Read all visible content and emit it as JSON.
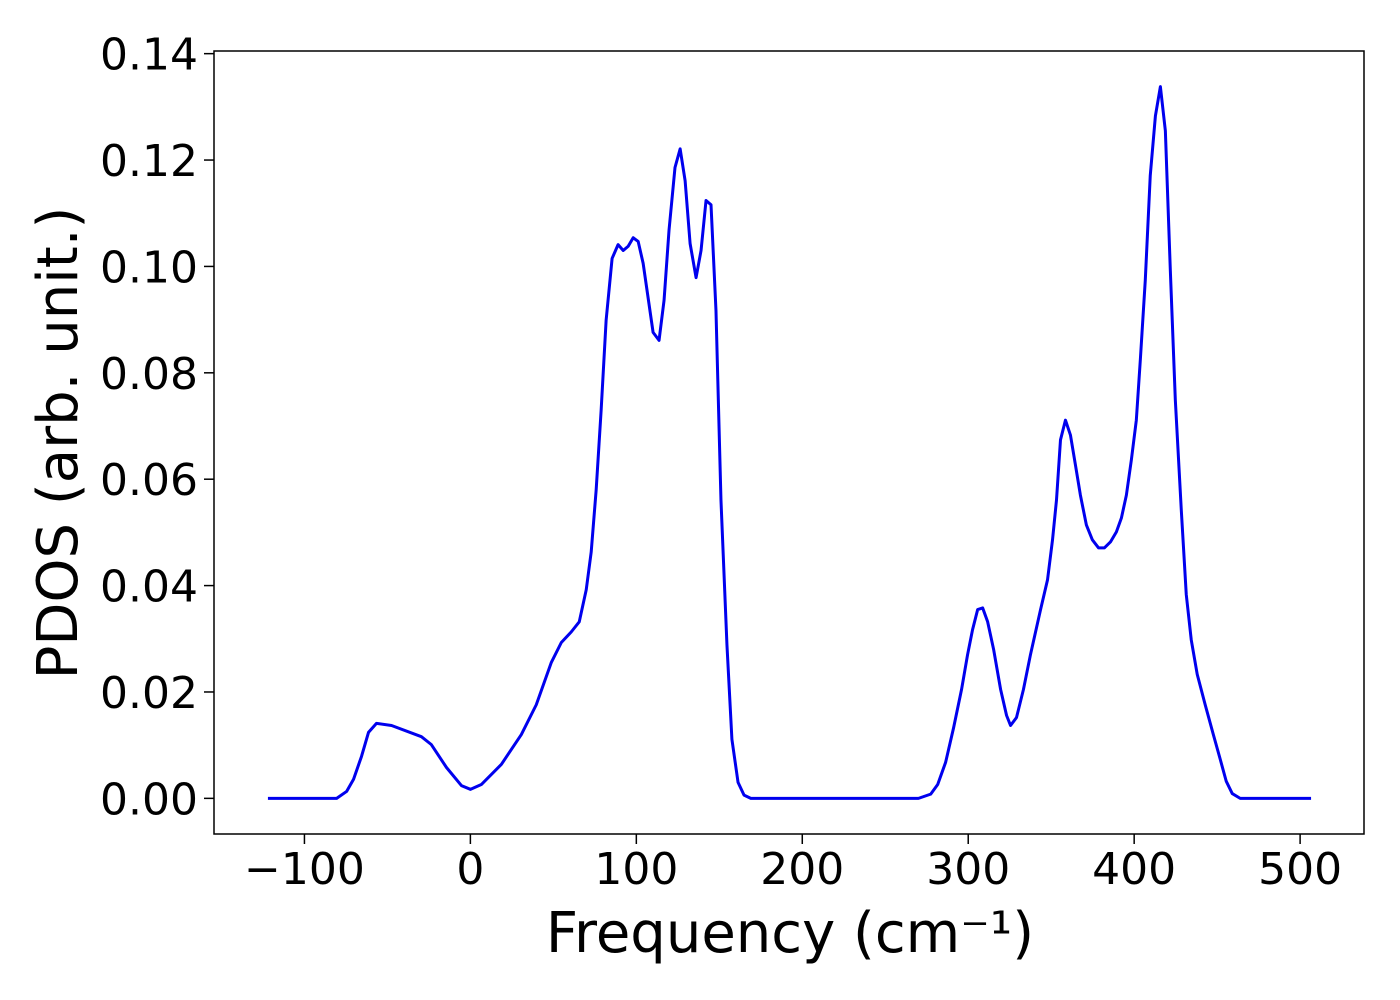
{
  "chart_data": {
    "type": "line",
    "xlabel": "Frequency (cm⁻¹)",
    "ylabel": "PDOS (arb. unit.)",
    "x": [
      -122,
      -80.6,
      -74.6,
      -70.4,
      -65.6,
      -61.4,
      -56.6,
      -47.5,
      -29.5,
      -23.5,
      -14.4,
      -5.4,
      0,
      6.6,
      18.7,
      30.7,
      39.7,
      48.7,
      54.8,
      60.8,
      65.6,
      69.8,
      72.8,
      75.8,
      78.8,
      81.8,
      85.4,
      89,
      92.1,
      95.1,
      98.1,
      101.1,
      104.1,
      110.1,
      113.7,
      116.7,
      119.7,
      123.3,
      126.4,
      129.4,
      132.4,
      136,
      139,
      142,
      145,
      148,
      151,
      154.6,
      157.6,
      161.3,
      164.9,
      169,
      270,
      277.4,
      281.6,
      286.4,
      291.2,
      296,
      299.6,
      302.6,
      305.7,
      308.7,
      311.7,
      315.3,
      319.5,
      323.1,
      325.5,
      329.1,
      333.3,
      337.5,
      343.6,
      347.8,
      350.8,
      353.2,
      355.6,
      358.6,
      361.6,
      364.6,
      367.6,
      371.2,
      374.8,
      378.5,
      382.1,
      385.7,
      389.3,
      392.3,
      395.3,
      398.3,
      401.3,
      403.7,
      406.7,
      409.7,
      412.8,
      415.8,
      418.8,
      421.8,
      424.8,
      428.4,
      431.4,
      434.4,
      438,
      442.8,
      447.7,
      451.9,
      455.5,
      459.1,
      463.9,
      506.6
    ],
    "series": [
      {
        "name": "PDOS",
        "color": "#0000ee",
        "values": [
          0,
          0,
          0.0013,
          0.0036,
          0.0079,
          0.0124,
          0.0141,
          0.0137,
          0.0116,
          0.0101,
          0.0058,
          0.0024,
          0.0017,
          0.0026,
          0.0064,
          0.012,
          0.0176,
          0.0255,
          0.0293,
          0.0313,
          0.0332,
          0.0392,
          0.0463,
          0.058,
          0.073,
          0.0899,
          0.1015,
          0.1041,
          0.103,
          0.1038,
          0.1054,
          0.1047,
          0.1006,
          0.0876,
          0.0861,
          0.0936,
          0.1068,
          0.1186,
          0.1221,
          0.1161,
          0.1043,
          0.0979,
          0.103,
          0.1124,
          0.1116,
          0.0917,
          0.0561,
          0.0289,
          0.0111,
          0.003,
          0.0006,
          0,
          0,
          0.0008,
          0.0026,
          0.0068,
          0.0133,
          0.0205,
          0.027,
          0.0317,
          0.0355,
          0.0358,
          0.0332,
          0.028,
          0.0205,
          0.0156,
          0.0137,
          0.0152,
          0.0205,
          0.027,
          0.0355,
          0.0411,
          0.0486,
          0.0561,
          0.0674,
          0.0711,
          0.0683,
          0.0627,
          0.057,
          0.0514,
          0.0486,
          0.0471,
          0.0471,
          0.0482,
          0.0501,
          0.0527,
          0.057,
          0.0636,
          0.0711,
          0.0824,
          0.0974,
          0.1171,
          0.1283,
          0.1338,
          0.1255,
          0.0992,
          0.0749,
          0.0542,
          0.0383,
          0.0298,
          0.0233,
          0.0176,
          0.012,
          0.0073,
          0.0032,
          0.0009,
          0,
          0
        ]
      }
    ],
    "xlim": [
      -154.5,
      538.5
    ],
    "ylim": [
      -0.0067,
      0.1405
    ],
    "xticks": [
      {
        "value": -100,
        "label": "−100"
      },
      0,
      100,
      200,
      300,
      400,
      500
    ],
    "yticks": [
      {
        "value": 0,
        "label": "0.00"
      },
      0.02,
      0.04,
      0.06,
      0.08,
      {
        "value": 0.1,
        "label": "0.10"
      },
      0.12,
      0.14
    ],
    "grid": false
  }
}
